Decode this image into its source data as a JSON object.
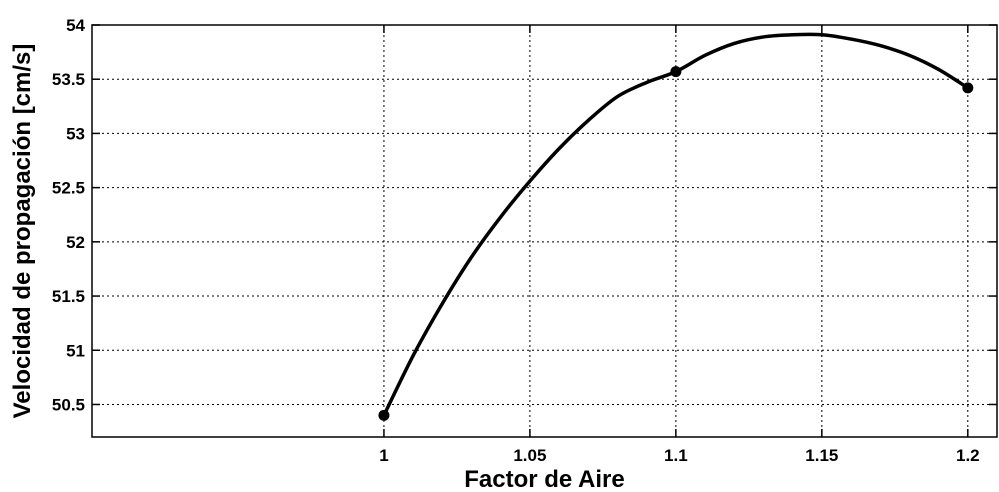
{
  "chart_data": {
    "type": "line",
    "title": "",
    "xlabel": "Factor de Aire",
    "ylabel": "Velocidad de propagación [cm/s]",
    "xlim": [
      0.9,
      1.21
    ],
    "ylim": [
      50.2,
      54
    ],
    "x_ticks": [
      1,
      1.05,
      1.1,
      1.15,
      1.2
    ],
    "x_tick_labels": [
      "1",
      "1.05",
      "1.1",
      "1.15",
      "1.2"
    ],
    "y_ticks": [
      50.5,
      51,
      51.5,
      52,
      52.5,
      53,
      53.5,
      54
    ],
    "y_tick_labels": [
      "50.5",
      "51",
      "51.5",
      "52",
      "52.5",
      "53",
      "53.5",
      "54"
    ],
    "grid": true,
    "series": [
      {
        "color": "#000000",
        "markers": {
          "x": [
            1,
            1.1,
            1.2
          ],
          "y": [
            50.4,
            53.57,
            53.42
          ]
        },
        "curve": {
          "x": [
            1.0,
            1.01,
            1.02,
            1.03,
            1.04,
            1.05,
            1.06,
            1.07,
            1.08,
            1.09,
            1.1,
            1.11,
            1.12,
            1.13,
            1.14,
            1.15,
            1.16,
            1.17,
            1.18,
            1.19,
            1.2
          ],
          "y": [
            50.4,
            50.95,
            51.43,
            51.86,
            52.23,
            52.56,
            52.86,
            53.12,
            53.34,
            53.47,
            53.57,
            53.72,
            53.83,
            53.89,
            53.91,
            53.91,
            53.87,
            53.81,
            53.72,
            53.59,
            53.42
          ]
        }
      }
    ]
  }
}
